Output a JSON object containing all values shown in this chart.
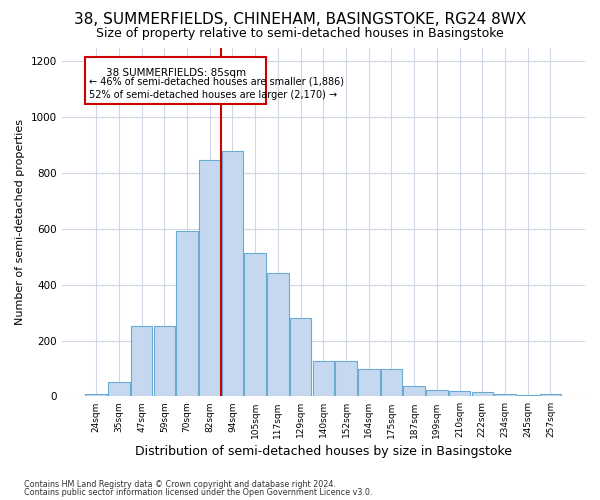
{
  "title1": "38, SUMMERFIELDS, CHINEHAM, BASINGSTOKE, RG24 8WX",
  "title2": "Size of property relative to semi-detached houses in Basingstoke",
  "xlabel": "Distribution of semi-detached houses by size in Basingstoke",
  "ylabel": "Number of semi-detached properties",
  "annotation_title": "38 SUMMERFIELDS: 85sqm",
  "annotation_line1": "← 46% of semi-detached houses are smaller (1,886)",
  "annotation_line2": "52% of semi-detached houses are larger (2,170) →",
  "footnote1": "Contains HM Land Registry data © Crown copyright and database right 2024.",
  "footnote2": "Contains public sector information licensed under the Open Government Licence v3.0.",
  "categories": [
    "24sqm",
    "35sqm",
    "47sqm",
    "59sqm",
    "70sqm",
    "82sqm",
    "94sqm",
    "105sqm",
    "117sqm",
    "129sqm",
    "140sqm",
    "152sqm",
    "164sqm",
    "175sqm",
    "187sqm",
    "199sqm",
    "210sqm",
    "222sqm",
    "234sqm",
    "245sqm",
    "257sqm"
  ],
  "values": [
    10,
    52,
    253,
    253,
    592,
    848,
    878,
    513,
    443,
    282,
    125,
    125,
    97,
    97,
    38,
    22,
    18,
    15,
    10,
    3,
    8
  ],
  "bar_color": "#c5d8f0",
  "bar_edge_color": "#6aabd2",
  "vline_color": "#cc0000",
  "ylim": [
    0,
    1250
  ],
  "yticks": [
    0,
    200,
    400,
    600,
    800,
    1000,
    1200
  ],
  "bg_color": "#ffffff",
  "plot_bg_color": "#ffffff",
  "grid_color": "#d0d8e8",
  "title1_fontsize": 11,
  "title2_fontsize": 9,
  "xlabel_fontsize": 9,
  "ylabel_fontsize": 8,
  "annotation_box_color": "#ffffff",
  "annotation_box_edge": "#cc0000",
  "vline_pos": 5.5
}
